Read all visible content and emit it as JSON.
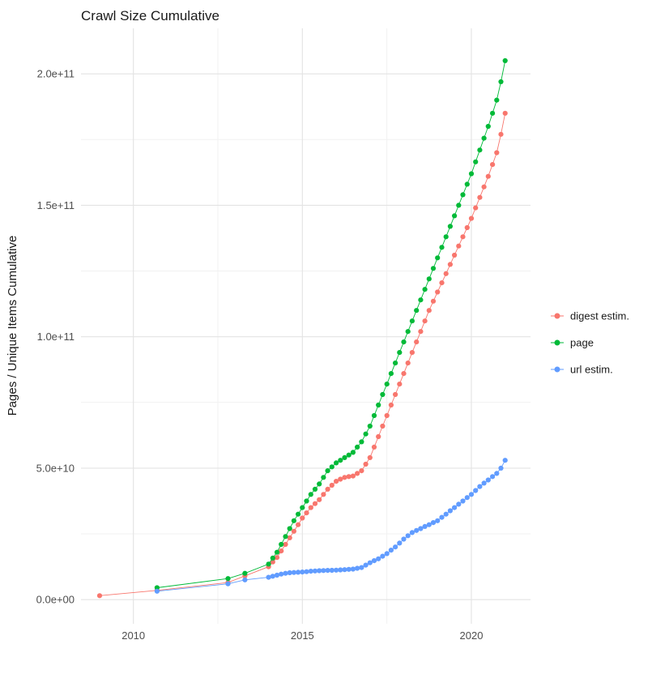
{
  "chart_data": {
    "type": "scatter",
    "title": "Crawl Size Cumulative",
    "xlabel": "",
    "ylabel": "Pages / Unique Items Cumulative",
    "legend_position": "right",
    "grid": true,
    "xlim": [
      2008.45,
      2021.75
    ],
    "ylim_e9": [
      -9.2,
      217.3
    ],
    "y_unit": 1000000000,
    "x_ticks": [
      2010,
      2015,
      2020
    ],
    "x_tick_labels": [
      "2010",
      "2015",
      "2020"
    ],
    "x_minor_ticks": [
      2012.5,
      2017.5
    ],
    "y_ticks_e9": [
      0,
      50,
      100,
      150,
      200
    ],
    "y_tick_labels": [
      "0.0e+00",
      "5.0e+10",
      "1.0e+11",
      "1.5e+11",
      "2.0e+11"
    ],
    "y_minor_ticks_e9": [
      25,
      75,
      125,
      175
    ],
    "theme": {
      "background": "#ffffff",
      "grid_major_color": "#e3e3e3",
      "grid_minor_color": "#f1f1f1"
    },
    "series": [
      {
        "name": "digest estim.",
        "color": "#F8766D",
        "points": [
          [
            2009,
            1.5
          ],
          [
            2010.7,
            3.5
          ],
          [
            2012.8,
            6.5
          ],
          [
            2013.3,
            9
          ],
          [
            2014,
            12.5
          ],
          [
            2014.125,
            14.3
          ],
          [
            2014.25,
            16
          ],
          [
            2014.375,
            18.5
          ],
          [
            2014.5,
            21
          ],
          [
            2014.625,
            23.5
          ],
          [
            2014.75,
            26
          ],
          [
            2014.875,
            28.5
          ],
          [
            2015,
            31
          ],
          [
            2015.125,
            33
          ],
          [
            2015.25,
            35
          ],
          [
            2015.375,
            36.5
          ],
          [
            2015.5,
            38
          ],
          [
            2015.625,
            40
          ],
          [
            2015.75,
            42
          ],
          [
            2015.875,
            43.5
          ],
          [
            2016,
            45
          ],
          [
            2016.125,
            45.8
          ],
          [
            2016.25,
            46.5
          ],
          [
            2016.375,
            46.8
          ],
          [
            2016.5,
            47
          ],
          [
            2016.625,
            48
          ],
          [
            2016.75,
            49
          ],
          [
            2016.875,
            51.5
          ],
          [
            2017,
            54
          ],
          [
            2017.125,
            58
          ],
          [
            2017.25,
            62
          ],
          [
            2017.375,
            66
          ],
          [
            2017.5,
            70
          ],
          [
            2017.625,
            74
          ],
          [
            2017.75,
            78
          ],
          [
            2017.875,
            82
          ],
          [
            2018,
            86
          ],
          [
            2018.125,
            90
          ],
          [
            2018.25,
            94
          ],
          [
            2018.375,
            98
          ],
          [
            2018.5,
            102
          ],
          [
            2018.625,
            106
          ],
          [
            2018.75,
            110
          ],
          [
            2018.875,
            113.5
          ],
          [
            2019,
            117
          ],
          [
            2019.125,
            120.5
          ],
          [
            2019.25,
            124
          ],
          [
            2019.375,
            127.5
          ],
          [
            2019.5,
            131
          ],
          [
            2019.625,
            134.5
          ],
          [
            2019.75,
            138
          ],
          [
            2019.875,
            141.5
          ],
          [
            2020,
            145
          ],
          [
            2020.125,
            149
          ],
          [
            2020.25,
            153
          ],
          [
            2020.375,
            157
          ],
          [
            2020.5,
            161
          ],
          [
            2020.625,
            165.5
          ],
          [
            2020.75,
            170
          ],
          [
            2020.875,
            177
          ],
          [
            2021,
            185
          ]
        ]
      },
      {
        "name": "page",
        "color": "#00BA38",
        "points": [
          [
            2010.7,
            4.5
          ],
          [
            2012.8,
            8
          ],
          [
            2013.3,
            10
          ],
          [
            2014,
            13.5
          ],
          [
            2014.125,
            15.8
          ],
          [
            2014.25,
            18
          ],
          [
            2014.375,
            21
          ],
          [
            2014.5,
            24
          ],
          [
            2014.625,
            27
          ],
          [
            2014.75,
            30
          ],
          [
            2014.875,
            32.5
          ],
          [
            2015,
            35
          ],
          [
            2015.125,
            37.5
          ],
          [
            2015.25,
            40
          ],
          [
            2015.375,
            42
          ],
          [
            2015.5,
            44
          ],
          [
            2015.625,
            46.5
          ],
          [
            2015.75,
            49
          ],
          [
            2015.875,
            50.5
          ],
          [
            2016,
            52
          ],
          [
            2016.125,
            53
          ],
          [
            2016.25,
            54
          ],
          [
            2016.375,
            55
          ],
          [
            2016.5,
            56
          ],
          [
            2016.625,
            58
          ],
          [
            2016.75,
            60
          ],
          [
            2016.875,
            63
          ],
          [
            2017,
            66
          ],
          [
            2017.125,
            70
          ],
          [
            2017.25,
            74
          ],
          [
            2017.375,
            78
          ],
          [
            2017.5,
            82
          ],
          [
            2017.625,
            86
          ],
          [
            2017.75,
            90
          ],
          [
            2017.875,
            94
          ],
          [
            2018,
            98
          ],
          [
            2018.125,
            102
          ],
          [
            2018.25,
            106
          ],
          [
            2018.375,
            110
          ],
          [
            2018.5,
            114
          ],
          [
            2018.625,
            118
          ],
          [
            2018.75,
            122
          ],
          [
            2018.875,
            126
          ],
          [
            2019,
            130
          ],
          [
            2019.125,
            134
          ],
          [
            2019.25,
            138
          ],
          [
            2019.375,
            142
          ],
          [
            2019.5,
            146
          ],
          [
            2019.625,
            150
          ],
          [
            2019.75,
            154
          ],
          [
            2019.875,
            158
          ],
          [
            2020,
            162
          ],
          [
            2020.125,
            166.5
          ],
          [
            2020.25,
            171
          ],
          [
            2020.375,
            175.5
          ],
          [
            2020.5,
            180
          ],
          [
            2020.625,
            185
          ],
          [
            2020.75,
            190
          ],
          [
            2020.875,
            197
          ],
          [
            2021,
            205
          ]
        ]
      },
      {
        "name": "url estim.",
        "color": "#619CFF",
        "points": [
          [
            2010.7,
            3.2
          ],
          [
            2012.8,
            6
          ],
          [
            2013.3,
            7.5
          ],
          [
            2014,
            8.5
          ],
          [
            2014.125,
            8.9
          ],
          [
            2014.25,
            9.3
          ],
          [
            2014.375,
            9.7
          ],
          [
            2014.5,
            10
          ],
          [
            2014.625,
            10.2
          ],
          [
            2014.75,
            10.3
          ],
          [
            2014.875,
            10.4
          ],
          [
            2015,
            10.5
          ],
          [
            2015.125,
            10.6
          ],
          [
            2015.25,
            10.8
          ],
          [
            2015.375,
            10.9
          ],
          [
            2015.5,
            11
          ],
          [
            2015.625,
            11.05
          ],
          [
            2015.75,
            11.1
          ],
          [
            2015.875,
            11.15
          ],
          [
            2016,
            11.2
          ],
          [
            2016.125,
            11.3
          ],
          [
            2016.25,
            11.4
          ],
          [
            2016.375,
            11.5
          ],
          [
            2016.5,
            11.6
          ],
          [
            2016.625,
            11.9
          ],
          [
            2016.75,
            12.2
          ],
          [
            2016.875,
            13.1
          ],
          [
            2017,
            14
          ],
          [
            2017.125,
            14.8
          ],
          [
            2017.25,
            15.5
          ],
          [
            2017.375,
            16.5
          ],
          [
            2017.5,
            17.5
          ],
          [
            2017.625,
            18.8
          ],
          [
            2017.75,
            20
          ],
          [
            2017.875,
            21.5
          ],
          [
            2018,
            23
          ],
          [
            2018.125,
            24.3
          ],
          [
            2018.25,
            25.5
          ],
          [
            2018.375,
            26.3
          ],
          [
            2018.5,
            27
          ],
          [
            2018.625,
            27.8
          ],
          [
            2018.75,
            28.5
          ],
          [
            2018.875,
            29.3
          ],
          [
            2019,
            30
          ],
          [
            2019.125,
            31.3
          ],
          [
            2019.25,
            32.5
          ],
          [
            2019.375,
            33.8
          ],
          [
            2019.5,
            35
          ],
          [
            2019.625,
            36.3
          ],
          [
            2019.75,
            37.5
          ],
          [
            2019.875,
            38.8
          ],
          [
            2020,
            40
          ],
          [
            2020.125,
            41.5
          ],
          [
            2020.25,
            43
          ],
          [
            2020.375,
            44.3
          ],
          [
            2020.5,
            45.5
          ],
          [
            2020.625,
            46.8
          ],
          [
            2020.75,
            48
          ],
          [
            2020.875,
            50
          ],
          [
            2021,
            53
          ]
        ]
      }
    ]
  }
}
